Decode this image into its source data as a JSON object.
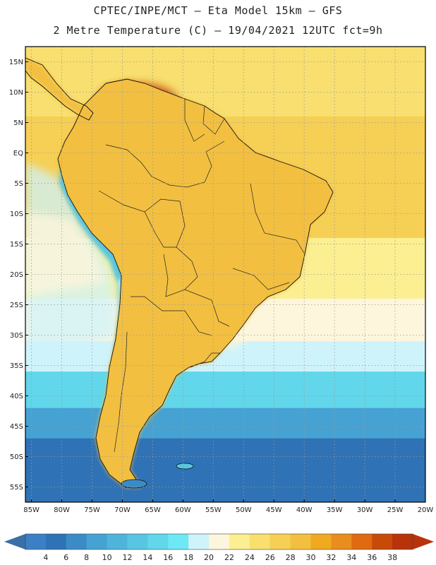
{
  "title": {
    "line1": "CPTEC/INPE/MCT –  Eta Model 15km – GFS",
    "line2": "2 Metre Temperature (C) – 19/04/2021 12UTC fct=9h"
  },
  "axes": {
    "lat_labels": [
      "15N",
      "10N",
      "5N",
      "EQ",
      "5S",
      "10S",
      "15S",
      "20S",
      "25S",
      "30S",
      "35S",
      "40S",
      "45S",
      "50S",
      "55S"
    ],
    "lat_values": [
      15,
      10,
      5,
      0,
      -5,
      -10,
      -15,
      -20,
      -25,
      -30,
      -35,
      -40,
      -45,
      -50,
      -55
    ],
    "lon_labels": [
      "85W",
      "80W",
      "75W",
      "70W",
      "65W",
      "60W",
      "55W",
      "50W",
      "45W",
      "40W",
      "35W",
      "30W",
      "25W",
      "20W"
    ],
    "lon_values": [
      -85,
      -80,
      -75,
      -70,
      -65,
      -60,
      -55,
      -50,
      -45,
      -40,
      -35,
      -30,
      -25,
      -20
    ],
    "lat_range": [
      -57.5,
      17.5
    ],
    "lon_range": [
      -86,
      -20
    ]
  },
  "colorbar": {
    "labels": [
      "4",
      "6",
      "8",
      "10",
      "12",
      "14",
      "16",
      "18",
      "20",
      "22",
      "24",
      "26",
      "28",
      "30",
      "32",
      "34",
      "36",
      "38"
    ],
    "colors": [
      "#3b7fc4",
      "#2f72b5",
      "#3b8cc6",
      "#46a2d2",
      "#4fb4da",
      "#58c6e2",
      "#62d6ea",
      "#6ee8f4",
      "#cff3fb",
      "#fdf6dc",
      "#fbef92",
      "#f8df70",
      "#f6cf55",
      "#f2bf40",
      "#efaa20",
      "#e98d1e",
      "#df6a12",
      "#c84a08",
      "#b8320a"
    ],
    "low_arrow_color": "#3a6fa8",
    "high_arrow_color": "#b8320a"
  },
  "colors": {
    "ocean_tropical": "#f6cf55",
    "ocean_warm": "#f8df70",
    "ocean_mild": "#fbef92",
    "ocean_cool": "#fdf6dc",
    "ocean_cold1": "#cff3fb",
    "ocean_cold2": "#62d6ea",
    "ocean_cold3": "#46a2d2",
    "ocean_cold4": "#2f72b5",
    "land_hot": "#e98d1e",
    "land_veryhot": "#c84a08",
    "land_warm": "#f2bf40",
    "andes": "#58c6e2"
  }
}
